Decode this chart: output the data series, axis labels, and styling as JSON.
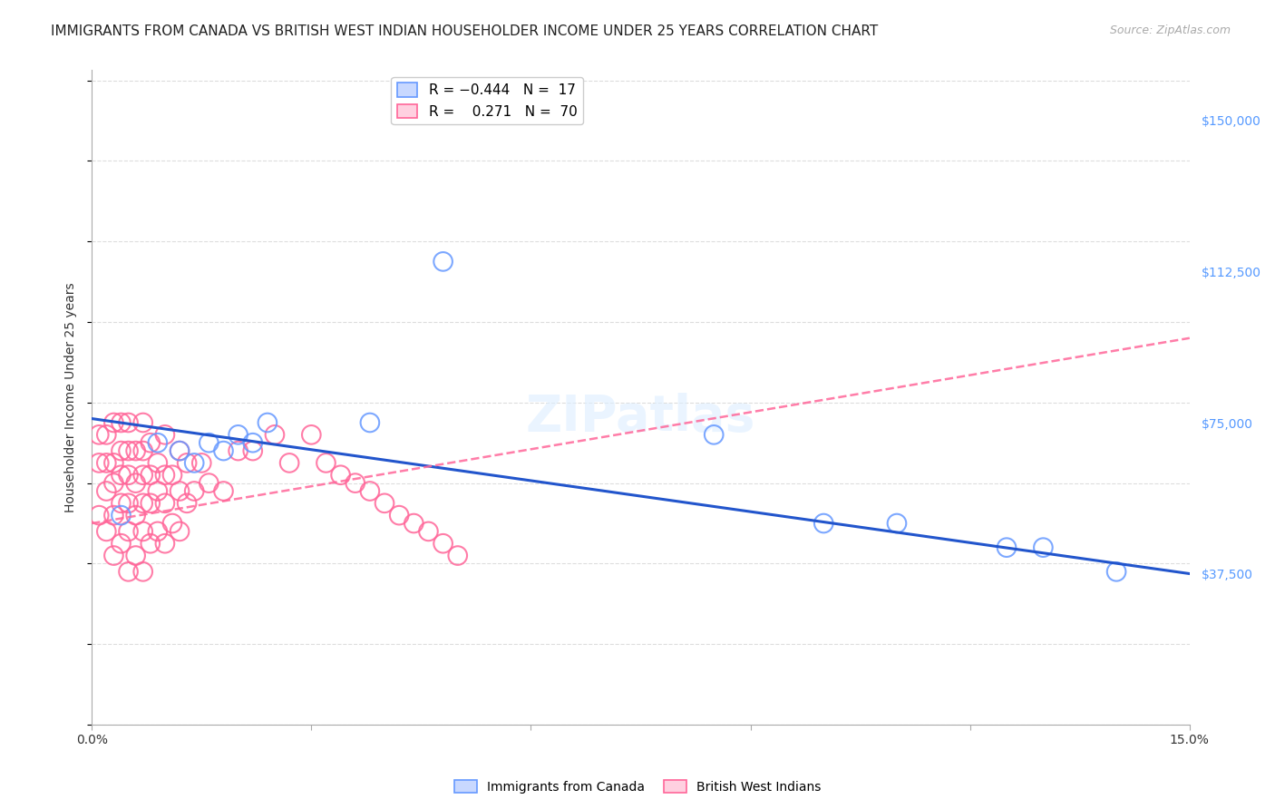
{
  "title": "IMMIGRANTS FROM CANADA VS BRITISH WEST INDIAN HOUSEHOLDER INCOME UNDER 25 YEARS CORRELATION CHART",
  "source": "Source: ZipAtlas.com",
  "ylabel": "Householder Income Under 25 years",
  "right_ytick_labels": [
    "$37,500",
    "$75,000",
    "$112,500",
    "$150,000"
  ],
  "right_ytick_values": [
    37500,
    75000,
    112500,
    150000
  ],
  "xlim": [
    0.0,
    0.15
  ],
  "ylim": [
    0,
    162500
  ],
  "canada_color": "#6699ff",
  "bwi_color": "#ff6699",
  "title_fontsize": 11,
  "source_fontsize": 9,
  "right_label_color": "#5599ff",
  "canada_x": [
    0.004,
    0.009,
    0.012,
    0.014,
    0.016,
    0.018,
    0.02,
    0.022,
    0.024,
    0.038,
    0.048,
    0.085,
    0.1,
    0.11,
    0.125,
    0.13,
    0.14
  ],
  "canada_y": [
    52000,
    70000,
    68000,
    65000,
    70000,
    68000,
    72000,
    70000,
    75000,
    75000,
    115000,
    72000,
    50000,
    50000,
    44000,
    44000,
    38000
  ],
  "bwi_x": [
    0.001,
    0.001,
    0.001,
    0.002,
    0.002,
    0.002,
    0.002,
    0.003,
    0.003,
    0.003,
    0.003,
    0.003,
    0.004,
    0.004,
    0.004,
    0.004,
    0.004,
    0.005,
    0.005,
    0.005,
    0.005,
    0.005,
    0.005,
    0.006,
    0.006,
    0.006,
    0.006,
    0.007,
    0.007,
    0.007,
    0.007,
    0.007,
    0.007,
    0.008,
    0.008,
    0.008,
    0.008,
    0.009,
    0.009,
    0.009,
    0.01,
    0.01,
    0.01,
    0.01,
    0.011,
    0.011,
    0.012,
    0.012,
    0.012,
    0.013,
    0.013,
    0.014,
    0.015,
    0.016,
    0.018,
    0.02,
    0.022,
    0.025,
    0.027,
    0.03,
    0.032,
    0.034,
    0.036,
    0.038,
    0.04,
    0.042,
    0.044,
    0.046,
    0.048,
    0.05
  ],
  "bwi_y": [
    52000,
    65000,
    72000,
    48000,
    58000,
    65000,
    72000,
    42000,
    52000,
    60000,
    65000,
    75000,
    45000,
    55000,
    62000,
    68000,
    75000,
    38000,
    48000,
    55000,
    62000,
    68000,
    75000,
    42000,
    52000,
    60000,
    68000,
    38000,
    48000,
    55000,
    62000,
    68000,
    75000,
    45000,
    55000,
    62000,
    70000,
    48000,
    58000,
    65000,
    45000,
    55000,
    62000,
    72000,
    50000,
    62000,
    48000,
    58000,
    68000,
    55000,
    65000,
    58000,
    65000,
    60000,
    58000,
    68000,
    68000,
    72000,
    65000,
    72000,
    65000,
    62000,
    60000,
    58000,
    55000,
    52000,
    50000,
    48000,
    45000,
    42000
  ]
}
